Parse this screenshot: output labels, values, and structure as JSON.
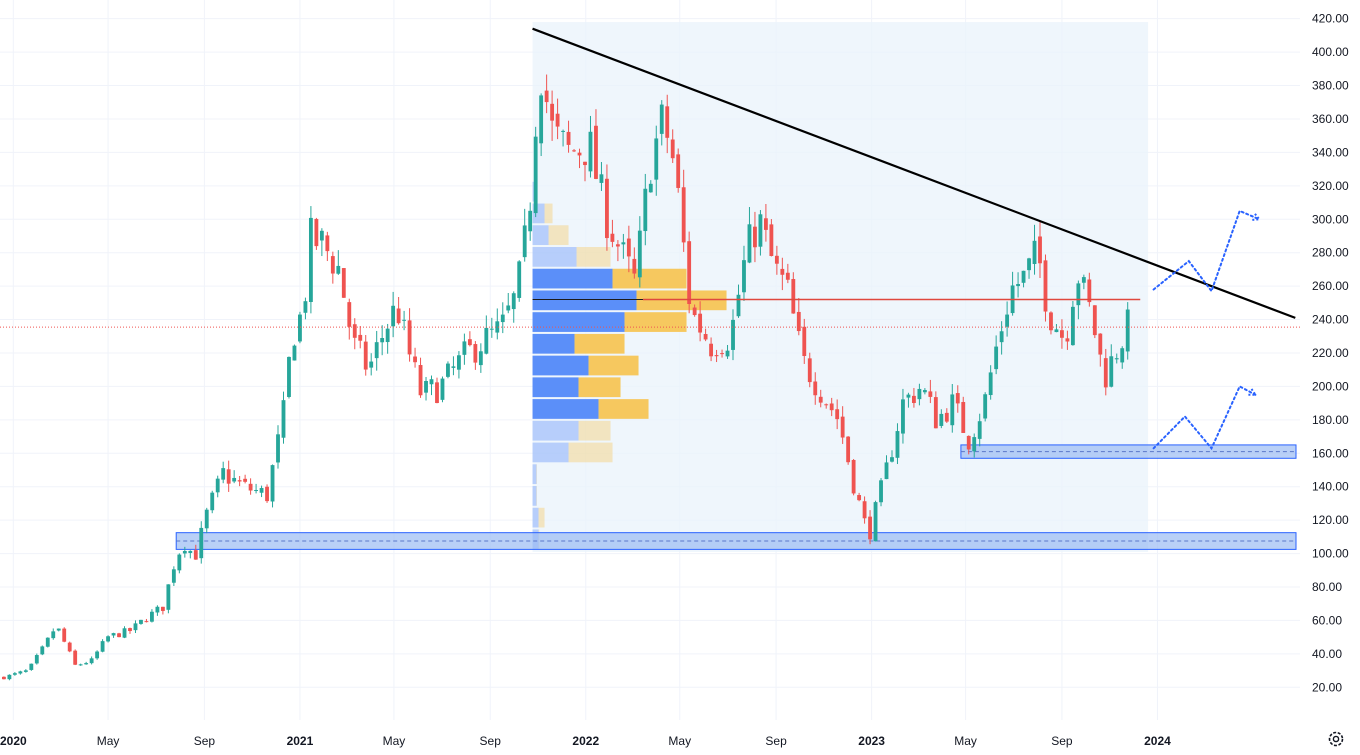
{
  "chart_data": {
    "type": "candlestick",
    "ylim": [
      10,
      424
    ],
    "y_ticks": [
      420,
      400,
      380,
      360,
      340,
      320,
      300,
      280,
      260,
      240,
      220,
      200,
      180,
      160,
      140,
      120,
      100,
      80,
      60,
      40,
      20
    ],
    "x_range": [
      "2019-12-15",
      "2024-07-01"
    ],
    "x_ticks": [
      {
        "label": "2020",
        "date": "2020-01-01",
        "bold": true
      },
      {
        "label": "May",
        "date": "2020-05-01",
        "bold": false
      },
      {
        "label": "Sep",
        "date": "2020-09-01",
        "bold": false
      },
      {
        "label": "2021",
        "date": "2021-01-01",
        "bold": true
      },
      {
        "label": "May",
        "date": "2021-05-01",
        "bold": false
      },
      {
        "label": "Sep",
        "date": "2021-09-01",
        "bold": false
      },
      {
        "label": "2022",
        "date": "2022-01-01",
        "bold": true
      },
      {
        "label": "May",
        "date": "2022-05-01",
        "bold": false
      },
      {
        "label": "Sep",
        "date": "2022-09-01",
        "bold": false
      },
      {
        "label": "2023",
        "date": "2023-01-01",
        "bold": true
      },
      {
        "label": "May",
        "date": "2023-05-01",
        "bold": false
      },
      {
        "label": "Sep",
        "date": "2023-09-01",
        "bold": false
      },
      {
        "label": "2024",
        "date": "2024-01-01",
        "bold": true
      }
    ],
    "close_anchors": [
      [
        "2019-12-20",
        26
      ],
      [
        "2020-01-20",
        30
      ],
      [
        "2020-02-10",
        45
      ],
      [
        "2020-02-25",
        57
      ],
      [
        "2020-03-20",
        33
      ],
      [
        "2020-04-10",
        36
      ],
      [
        "2020-04-30",
        50
      ],
      [
        "2020-05-30",
        54
      ],
      [
        "2020-06-20",
        62
      ],
      [
        "2020-07-10",
        68
      ],
      [
        "2020-07-25",
        95
      ],
      [
        "2020-08-05",
        107
      ],
      [
        "2020-08-20",
        98
      ],
      [
        "2020-09-05",
        125
      ],
      [
        "2020-09-25",
        148
      ],
      [
        "2020-10-20",
        140
      ],
      [
        "2020-11-20",
        135
      ],
      [
        "2020-12-10",
        180
      ],
      [
        "2020-12-22",
        230
      ],
      [
        "2021-01-05",
        245
      ],
      [
        "2021-01-15",
        288
      ],
      [
        "2021-01-30",
        285
      ],
      [
        "2021-02-20",
        270
      ],
      [
        "2021-03-10",
        225
      ],
      [
        "2021-03-30",
        210
      ],
      [
        "2021-04-20",
        235
      ],
      [
        "2021-05-05",
        248
      ],
      [
        "2021-05-20",
        220
      ],
      [
        "2021-06-05",
        195
      ],
      [
        "2021-06-30",
        200
      ],
      [
        "2021-07-30",
        218
      ],
      [
        "2021-08-25",
        228
      ],
      [
        "2021-09-15",
        234
      ],
      [
        "2021-10-05",
        255
      ],
      [
        "2021-10-20",
        300
      ],
      [
        "2021-11-03",
        395
      ],
      [
        "2021-11-20",
        350
      ],
      [
        "2021-12-10",
        340
      ],
      [
        "2022-01-05",
        345
      ],
      [
        "2022-01-25",
        305
      ],
      [
        "2022-02-15",
        280
      ],
      [
        "2022-03-05",
        262
      ],
      [
        "2022-03-25",
        335
      ],
      [
        "2022-04-10",
        360
      ],
      [
        "2022-04-25",
        330
      ],
      [
        "2022-05-15",
        245
      ],
      [
        "2022-06-10",
        225
      ],
      [
        "2022-07-05",
        230
      ],
      [
        "2022-07-25",
        280
      ],
      [
        "2022-08-10",
        300
      ],
      [
        "2022-08-30",
        270
      ],
      [
        "2022-09-15",
        258
      ],
      [
        "2022-10-05",
        215
      ],
      [
        "2022-10-25",
        200
      ],
      [
        "2022-11-20",
        180
      ],
      [
        "2022-12-10",
        140
      ],
      [
        "2022-12-28",
        110
      ],
      [
        "2023-01-20",
        150
      ],
      [
        "2023-02-10",
        190
      ],
      [
        "2023-03-05",
        200
      ],
      [
        "2023-03-25",
        180
      ],
      [
        "2023-04-15",
        190
      ],
      [
        "2023-05-05",
        168
      ],
      [
        "2023-05-25",
        190
      ],
      [
        "2023-06-10",
        225
      ],
      [
        "2023-06-28",
        258
      ],
      [
        "2023-07-15",
        265
      ],
      [
        "2023-08-01",
        280
      ],
      [
        "2023-08-15",
        245
      ],
      [
        "2023-09-05",
        228
      ],
      [
        "2023-09-20",
        270
      ],
      [
        "2023-10-10",
        240
      ],
      [
        "2023-10-25",
        205
      ],
      [
        "2023-11-10",
        222
      ],
      [
        "2023-11-25",
        237
      ]
    ],
    "current_price": 235.5,
    "volume_profile": {
      "x_start": "2021-10-25",
      "x_end": "2023-12-20",
      "y_bottom": 101,
      "y_top": 418,
      "poc_price": 252,
      "bins": [
        {
          "lo": 102,
          "hi": 115,
          "up": 0.03,
          "down": 0.004,
          "value_area": false
        },
        {
          "lo": 115,
          "hi": 128,
          "up": 0.03,
          "down": 0.03,
          "value_area": false
        },
        {
          "lo": 128,
          "hi": 141,
          "up": 0.02,
          "down": 0.002,
          "value_area": false
        },
        {
          "lo": 141,
          "hi": 154,
          "up": 0.02,
          "down": 0.002,
          "value_area": false
        },
        {
          "lo": 154,
          "hi": 167,
          "up": 0.18,
          "down": 0.22,
          "value_area": false
        },
        {
          "lo": 167,
          "hi": 180,
          "up": 0.23,
          "down": 0.16,
          "value_area": false
        },
        {
          "lo": 180,
          "hi": 193,
          "up": 0.33,
          "down": 0.25,
          "value_area": true
        },
        {
          "lo": 193,
          "hi": 206,
          "up": 0.23,
          "down": 0.21,
          "value_area": true
        },
        {
          "lo": 206,
          "hi": 219,
          "up": 0.28,
          "down": 0.25,
          "value_area": true
        },
        {
          "lo": 219,
          "hi": 232,
          "up": 0.21,
          "down": 0.25,
          "value_area": true
        },
        {
          "lo": 232,
          "hi": 245,
          "up": 0.46,
          "down": 0.31,
          "value_area": true
        },
        {
          "lo": 245,
          "hi": 258,
          "up": 0.52,
          "down": 0.45,
          "value_area": true
        },
        {
          "lo": 258,
          "hi": 271,
          "up": 0.4,
          "down": 0.37,
          "value_area": true
        },
        {
          "lo": 271,
          "hi": 284,
          "up": 0.22,
          "down": 0.17,
          "value_area": false
        },
        {
          "lo": 284,
          "hi": 297,
          "up": 0.08,
          "down": 0.1,
          "value_area": false
        },
        {
          "lo": 297,
          "hi": 310,
          "up": 0.06,
          "down": 0.04,
          "value_area": false
        },
        {
          "lo": 310,
          "hi": 323,
          "up": 0.02,
          "down": 0.003,
          "value_area": false
        }
      ]
    },
    "zones": [
      {
        "x_start": "2020-07-27",
        "x_end": "2024-07-01",
        "lo": 102.5,
        "hi": 112.5
      },
      {
        "x_start": "2023-04-25",
        "x_end": "2024-07-01",
        "lo": 157,
        "hi": 165
      }
    ],
    "trendline": {
      "x1": "2021-10-25",
      "y1": 414,
      "x2": "2024-06-25",
      "y2": 241
    },
    "horizontal_line": {
      "x_start": "2022-03-15",
      "x_end": "2023-12-10",
      "y": 252
    },
    "projections": [
      [
        [
          "2023-12-27",
          258
        ],
        [
          "2024-02-10",
          275
        ],
        [
          "2024-03-10",
          257
        ],
        [
          "2024-04-15",
          305
        ],
        [
          "2024-05-10",
          300
        ]
      ],
      [
        [
          "2023-12-27",
          163
        ],
        [
          "2024-02-05",
          182
        ],
        [
          "2024-03-10",
          163
        ],
        [
          "2024-04-15",
          200
        ],
        [
          "2024-05-05",
          195
        ]
      ]
    ],
    "colors": {
      "up": "#26a69a",
      "down": "#ef5350",
      "profile_up": "#5b8ff9",
      "profile_down": "#f6c85f",
      "profile_bg": "#e9f3fb",
      "zone_fill": "#9bbcf3",
      "zone_border": "#2962ff",
      "trendline": "#000000",
      "horizontal_line": "#e0483e",
      "price_line": "#ef5350",
      "projection": "#2962ff",
      "grid": "#f0f3fa"
    }
  }
}
